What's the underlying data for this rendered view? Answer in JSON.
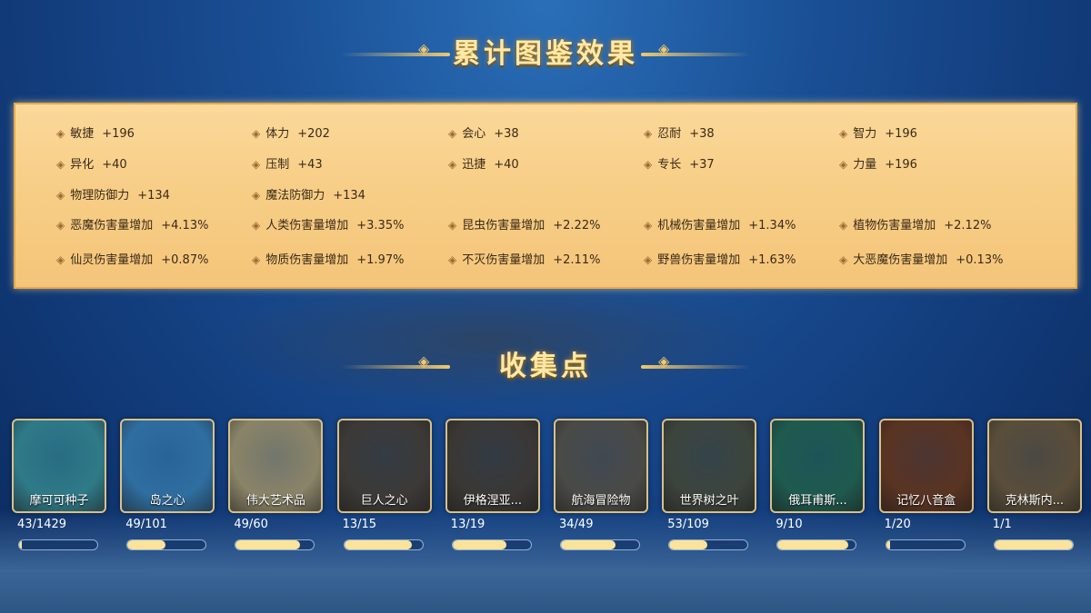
{
  "title": "累计图鉴效果",
  "collection_title": "收集点",
  "stats": [
    [
      {
        "n": "敏捷",
        "v": "+196"
      },
      {
        "n": "体力",
        "v": "+202"
      },
      {
        "n": "会心",
        "v": "+38"
      },
      {
        "n": "忍耐",
        "v": "+38"
      },
      {
        "n": "智力",
        "v": "+196"
      }
    ],
    [
      {
        "n": "异化",
        "v": "+40"
      },
      {
        "n": "压制",
        "v": "+43"
      },
      {
        "n": "迅捷",
        "v": "+40"
      },
      {
        "n": "专长",
        "v": "+37"
      },
      {
        "n": "力量",
        "v": "+196"
      }
    ],
    [
      {
        "n": "物理防御力",
        "v": "+134"
      },
      {
        "n": "魔法防御力",
        "v": "+134"
      }
    ],
    [
      {
        "n": "恶魔伤害量增加",
        "v": "+4.13%"
      },
      {
        "n": "人类伤害量增加",
        "v": "+3.35%"
      },
      {
        "n": "昆虫伤害量增加",
        "v": "+2.22%"
      },
      {
        "n": "机械伤害量增加",
        "v": "+1.34%"
      },
      {
        "n": "植物伤害量增加",
        "v": "+2.12%"
      }
    ],
    [
      {
        "n": "仙灵伤害量增加",
        "v": "+0.87%"
      },
      {
        "n": "物质伤害量增加",
        "v": "+1.97%"
      },
      {
        "n": "不灭伤害量增加",
        "v": "+2.11%"
      },
      {
        "n": "野兽伤害量增加",
        "v": "+1.63%"
      },
      {
        "n": "大恶魔伤害量增加",
        "v": "+0.13%"
      }
    ]
  ],
  "collections": [
    {
      "name": "摩可可种子",
      "count": "43/1429",
      "progress": 0.03,
      "color": "#2f7a88"
    },
    {
      "name": "岛之心",
      "count": "49/101",
      "progress": 0.485,
      "color": "#2f6ea0"
    },
    {
      "name": "伟大艺术品",
      "count": "49/60",
      "progress": 0.817,
      "color": "#8a8468"
    },
    {
      "name": "巨人之心",
      "count": "13/15",
      "progress": 0.867,
      "color": "#3c3a36"
    },
    {
      "name": "伊格涅亚...",
      "count": "13/19",
      "progress": 0.684,
      "color": "#3a3834"
    },
    {
      "name": "航海冒险物",
      "count": "34/49",
      "progress": 0.694,
      "color": "#4a4a46"
    },
    {
      "name": "世界树之叶",
      "count": "53/109",
      "progress": 0.486,
      "color": "#3d443c"
    },
    {
      "name": "俄耳甫斯...",
      "count": "9/10",
      "progress": 0.9,
      "color": "#1f5a4e"
    },
    {
      "name": "记忆八音盒",
      "count": "1/20",
      "progress": 0.05,
      "color": "#5a3422"
    },
    {
      "name": "克林斯内...",
      "count": "1/1",
      "progress": 1.0,
      "color": "#5a4e3a"
    }
  ]
}
